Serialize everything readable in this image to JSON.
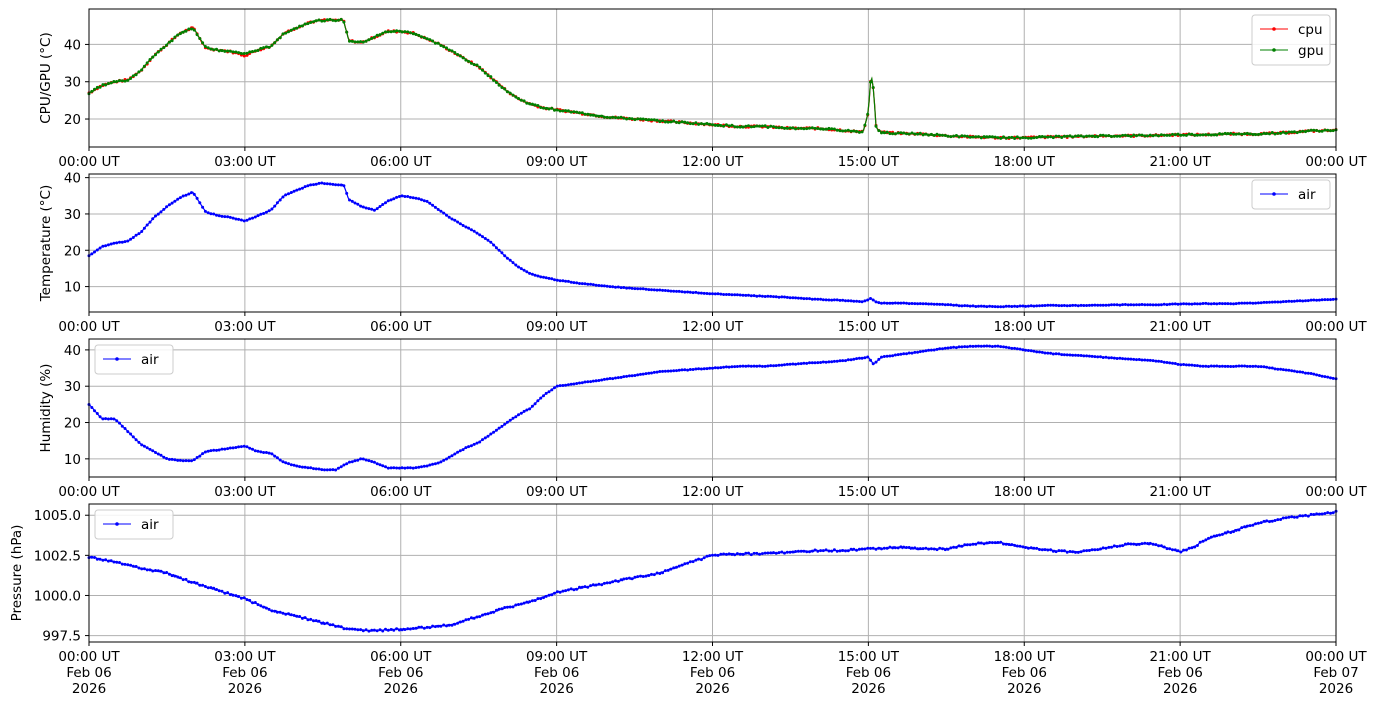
{
  "chart_data": [
    {
      "type": "line",
      "ylabel": "CPU/GPU (°C)",
      "xlim": [
        "2026-02-06T00:00Z",
        "2026-02-07T00:00Z"
      ],
      "ylim": [
        12.5,
        49.5
      ],
      "yticks": [
        20,
        30,
        40
      ],
      "xtick_labels": [
        "00:00 UT",
        "03:00 UT",
        "06:00 UT",
        "09:00 UT",
        "12:00 UT",
        "15:00 UT",
        "18:00 UT",
        "21:00 UT",
        "00:00 UT"
      ],
      "grid": true,
      "legend": "upper right",
      "x_hours": [
        0,
        0.25,
        0.5,
        0.75,
        1.0,
        1.25,
        1.5,
        1.75,
        2.0,
        2.25,
        2.5,
        2.75,
        3.0,
        3.25,
        3.5,
        3.75,
        4.0,
        4.25,
        4.5,
        4.75,
        4.9,
        5.0,
        5.25,
        5.5,
        5.75,
        6.0,
        6.25,
        6.5,
        6.75,
        7.0,
        7.25,
        7.5,
        7.75,
        8.0,
        8.25,
        8.5,
        8.75,
        9.0,
        9.5,
        10.0,
        10.5,
        11.0,
        11.5,
        12.0,
        12.5,
        13.0,
        13.5,
        14.0,
        14.5,
        14.9,
        15.0,
        15.05,
        15.1,
        15.15,
        15.25,
        15.5,
        16.0,
        16.5,
        17.0,
        17.5,
        18.0,
        18.5,
        19.0,
        19.5,
        20.0,
        20.5,
        21.0,
        21.5,
        22.0,
        22.5,
        23.0,
        23.5,
        24.0
      ],
      "series": [
        {
          "name": "cpu",
          "color": "#ff0000",
          "values": [
            27,
            29,
            30,
            30.5,
            33,
            37,
            40,
            43,
            44.5,
            39,
            38.5,
            38,
            37,
            38.5,
            39.5,
            43,
            44.5,
            46,
            46.5,
            46.5,
            46.5,
            41,
            40.5,
            42,
            43.5,
            43.5,
            43,
            41.5,
            40,
            38,
            36,
            34,
            31,
            28,
            25.5,
            24,
            23,
            22.5,
            21.5,
            20.5,
            20,
            19.5,
            19,
            18.5,
            18,
            18,
            17.5,
            17.5,
            17,
            16.5,
            22,
            32,
            28,
            17.5,
            16.5,
            16.2,
            16,
            15.5,
            15.2,
            15,
            15,
            15.2,
            15.3,
            15.5,
            15.5,
            15.6,
            15.8,
            15.8,
            16,
            16,
            16.3,
            16.8,
            17
          ]
        },
        {
          "name": "gpu",
          "color": "#008000",
          "values": [
            27,
            29,
            30,
            30.5,
            33,
            37,
            40,
            43,
            44.5,
            39,
            38.5,
            38,
            37.5,
            38.5,
            39.5,
            43,
            44.5,
            46,
            46.5,
            46.5,
            46.5,
            41,
            40.5,
            42,
            43.5,
            43.5,
            43,
            41.5,
            40,
            38,
            36,
            34,
            31,
            28,
            25.5,
            24,
            23,
            22.5,
            21.5,
            20.5,
            20,
            19.5,
            19,
            18.5,
            18,
            18,
            17.5,
            17.5,
            17,
            16.5,
            22,
            32,
            28,
            17.5,
            16.5,
            16.2,
            16,
            15.5,
            15.2,
            15,
            15,
            15.2,
            15.3,
            15.5,
            15.5,
            15.6,
            15.8,
            15.8,
            16,
            16,
            16.3,
            16.8,
            17
          ]
        }
      ]
    },
    {
      "type": "line",
      "ylabel": "Temperature (°C)",
      "xlim": [
        "2026-02-06T00:00Z",
        "2026-02-07T00:00Z"
      ],
      "ylim": [
        3,
        41
      ],
      "yticks": [
        10,
        20,
        30,
        40
      ],
      "xtick_labels": [
        "00:00 UT",
        "03:00 UT",
        "06:00 UT",
        "09:00 UT",
        "12:00 UT",
        "15:00 UT",
        "18:00 UT",
        "21:00 UT",
        "00:00 UT"
      ],
      "grid": true,
      "legend": "upper right",
      "x_hours": [
        0,
        0.25,
        0.5,
        0.75,
        1.0,
        1.25,
        1.5,
        1.75,
        2.0,
        2.25,
        2.5,
        2.75,
        3.0,
        3.25,
        3.5,
        3.75,
        4.0,
        4.25,
        4.5,
        4.75,
        4.9,
        5.0,
        5.25,
        5.5,
        5.75,
        6.0,
        6.25,
        6.5,
        6.75,
        7.0,
        7.25,
        7.5,
        7.75,
        8.0,
        8.25,
        8.5,
        8.75,
        9.0,
        9.5,
        10.0,
        10.5,
        11.0,
        11.5,
        12.0,
        12.5,
        13.0,
        13.5,
        14.0,
        14.5,
        14.9,
        15.05,
        15.15,
        15.25,
        15.5,
        16.0,
        16.5,
        17.0,
        17.5,
        18.0,
        18.5,
        19.0,
        19.5,
        20.0,
        20.5,
        21.0,
        21.5,
        22.0,
        22.5,
        23.0,
        23.5,
        24.0
      ],
      "series": [
        {
          "name": "air",
          "color": "#0000ff",
          "values": [
            18.5,
            21,
            22,
            22.5,
            25,
            29,
            32,
            34.5,
            36,
            30.5,
            29.5,
            29,
            28,
            29.5,
            31,
            35,
            36.5,
            38,
            38.5,
            38,
            38,
            34,
            32,
            31,
            33.5,
            35,
            34.5,
            33.5,
            31,
            28.5,
            26.5,
            24.5,
            22,
            18.5,
            15.5,
            13.5,
            12.5,
            11.8,
            10.8,
            10,
            9.5,
            9,
            8.5,
            8,
            7.7,
            7.3,
            7,
            6.5,
            6.2,
            5.8,
            6.8,
            5.8,
            5.5,
            5.5,
            5.3,
            5,
            4.6,
            4.5,
            4.6,
            4.8,
            4.8,
            4.9,
            5,
            5,
            5.2,
            5.3,
            5.3,
            5.5,
            5.8,
            6.2,
            6.5
          ]
        }
      ]
    },
    {
      "type": "line",
      "ylabel": "Humidity (%)",
      "xlim": [
        "2026-02-06T00:00Z",
        "2026-02-07T00:00Z"
      ],
      "ylim": [
        5,
        43
      ],
      "yticks": [
        10,
        20,
        30,
        40
      ],
      "xtick_labels": [
        "00:00 UT",
        "03:00 UT",
        "06:00 UT",
        "09:00 UT",
        "12:00 UT",
        "15:00 UT",
        "18:00 UT",
        "21:00 UT",
        "00:00 UT"
      ],
      "grid": true,
      "legend": "upper left",
      "x_hours": [
        0,
        0.25,
        0.5,
        0.75,
        1.0,
        1.25,
        1.5,
        1.75,
        2.0,
        2.25,
        2.5,
        2.75,
        3.0,
        3.25,
        3.5,
        3.75,
        4.0,
        4.25,
        4.5,
        4.75,
        5.0,
        5.25,
        5.5,
        5.75,
        6.0,
        6.25,
        6.5,
        6.75,
        7.0,
        7.25,
        7.5,
        7.75,
        8.0,
        8.25,
        8.5,
        8.75,
        9.0,
        9.5,
        10.0,
        10.5,
        11.0,
        11.5,
        12.0,
        12.5,
        13.0,
        13.5,
        14.0,
        14.5,
        15.0,
        15.1,
        15.25,
        15.5,
        16.0,
        16.5,
        17.0,
        17.5,
        18.0,
        18.5,
        19.0,
        19.5,
        20.0,
        20.5,
        21.0,
        21.5,
        22.0,
        22.5,
        23.0,
        23.5,
        24.0
      ],
      "series": [
        {
          "name": "air",
          "color": "#0000ff",
          "values": [
            25,
            21,
            21,
            17.5,
            14,
            12,
            10,
            9.5,
            9.5,
            12,
            12.5,
            13,
            13.5,
            12,
            11.5,
            9,
            8,
            7.5,
            7,
            7,
            9,
            10,
            9,
            7.5,
            7.5,
            7.5,
            8,
            9,
            11,
            13,
            14.5,
            17,
            19.5,
            22,
            24,
            27.5,
            30,
            31,
            32,
            33,
            34,
            34.5,
            35,
            35.5,
            35.5,
            36,
            36.5,
            37,
            38,
            36,
            38,
            38.5,
            39.5,
            40.5,
            41,
            41,
            40,
            39,
            38.5,
            38,
            37.5,
            37,
            36,
            35.5,
            35.5,
            35.5,
            34.5,
            33.5,
            32
          ]
        }
      ]
    },
    {
      "type": "line",
      "ylabel": "Pressure (hPa)",
      "xlim": [
        "2026-02-06T00:00Z",
        "2026-02-07T00:00Z"
      ],
      "ylim": [
        997.1,
        1005.7
      ],
      "yticks": [
        997.5,
        1000.0,
        1002.5,
        1005.0
      ],
      "ytick_labels": [
        "997.5",
        "1000.0",
        "1002.5",
        "1005.0"
      ],
      "xtick_labels": [
        "00:00 UT\nFeb 06\n2026",
        "03:00 UT\nFeb 06\n2026",
        "06:00 UT\nFeb 06\n2026",
        "09:00 UT\nFeb 06\n2026",
        "12:00 UT\nFeb 06\n2026",
        "15:00 UT\nFeb 06\n2026",
        "18:00 UT\nFeb 06\n2026",
        "21:00 UT\nFeb 06\n2026",
        "00:00 UT\nFeb 07\n2026"
      ],
      "grid": true,
      "legend": "upper left",
      "x_hours": [
        0,
        0.5,
        1.0,
        1.5,
        2.0,
        2.5,
        3.0,
        3.5,
        4.0,
        4.5,
        5.0,
        5.5,
        6.0,
        6.5,
        7.0,
        7.5,
        8.0,
        8.5,
        9.0,
        9.5,
        10.0,
        10.5,
        11.0,
        11.5,
        12.0,
        12.5,
        13.0,
        13.5,
        14.0,
        14.5,
        15.0,
        15.5,
        16.0,
        16.5,
        17.0,
        17.5,
        18.0,
        18.5,
        19.0,
        19.5,
        20.0,
        20.5,
        21.0,
        21.25,
        21.5,
        22.0,
        22.5,
        23.0,
        23.5,
        24.0
      ],
      "series": [
        {
          "name": "air",
          "color": "#0000ff",
          "values": [
            1002.4,
            1002.1,
            1001.7,
            1001.4,
            1000.8,
            1000.3,
            999.8,
            999.1,
            998.7,
            998.3,
            997.9,
            997.8,
            997.9,
            998.0,
            998.2,
            998.7,
            999.2,
            999.6,
            1000.2,
            1000.5,
            1000.8,
            1001.1,
            1001.4,
            1002.0,
            1002.5,
            1002.6,
            1002.6,
            1002.7,
            1002.8,
            1002.8,
            1002.9,
            1003.0,
            1002.9,
            1002.9,
            1003.2,
            1003.3,
            1003.0,
            1002.8,
            1002.7,
            1002.9,
            1003.2,
            1003.2,
            1002.7,
            1003.0,
            1003.5,
            1004.0,
            1004.5,
            1004.8,
            1005.0,
            1005.2
          ]
        }
      ]
    }
  ]
}
